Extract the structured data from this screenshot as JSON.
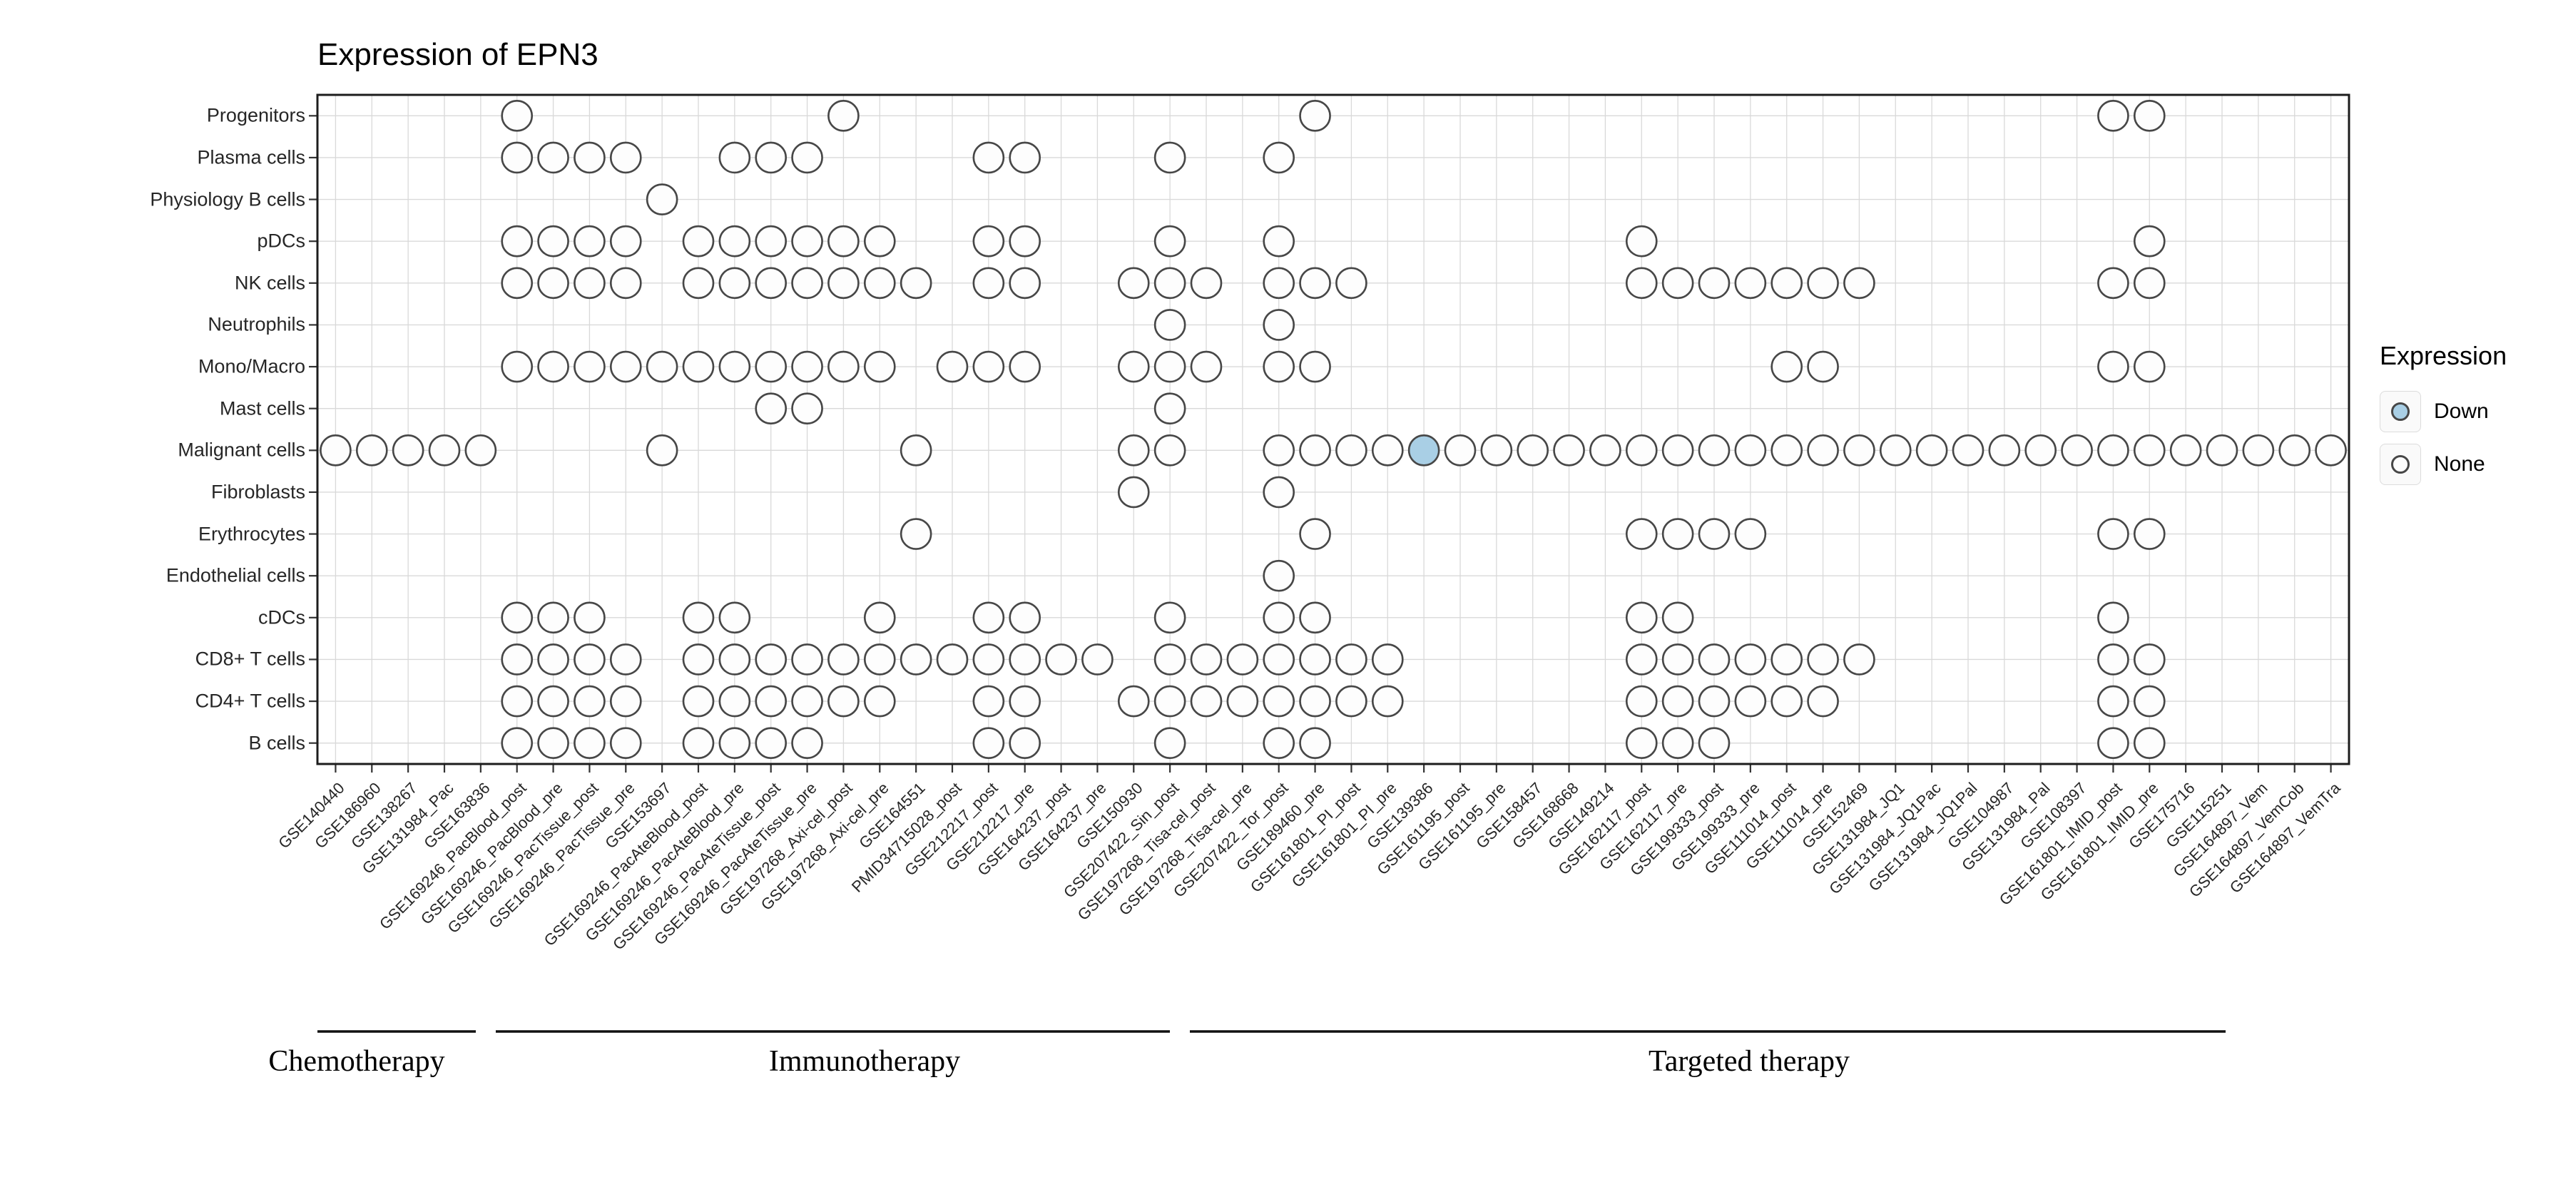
{
  "title": "Expression of EPN3",
  "legend": {
    "title": "Expression",
    "items": [
      {
        "label": "Down",
        "color": "#a9cfe5"
      },
      {
        "label": "None",
        "color": "#fdfdfd"
      }
    ]
  },
  "therapy_groups": [
    {
      "label": "Chemotherapy"
    },
    {
      "label": "Immunotherapy"
    },
    {
      "label": "Targeted therapy"
    }
  ],
  "chart_data": {
    "type": "scatter",
    "subtype": "dot-matrix",
    "title": "Expression of EPN3",
    "xlabel": "",
    "ylabel": "",
    "legend_position": "right",
    "grid": true,
    "colors": {
      "down_fill": "#a9cfe5",
      "none_fill": "#fdfdfd",
      "dot_stroke": "#474747"
    },
    "rows": [
      "Progenitors",
      "Plasma cells",
      "Physiology B cells",
      "pDCs",
      "NK cells",
      "Neutrophils",
      "Mono/Macro",
      "Mast cells",
      "Malignant cells",
      "Fibroblasts",
      "Erythrocytes",
      "Endothelial cells",
      "cDCs",
      "CD8+ T cells",
      "CD4+ T cells",
      "B cells"
    ],
    "columns": [
      "GSE140440",
      "GSE186960",
      "GSE138267",
      "GSE131984_Pac",
      "GSE163836",
      "GSE169246_PacBlood_post",
      "GSE169246_PacBlood_pre",
      "GSE169246_PacTissue_post",
      "GSE169246_PacTissue_pre",
      "GSE153697",
      "GSE169246_PacAteBlood_post",
      "GSE169246_PacAteBlood_pre",
      "GSE169246_PacAteTissue_post",
      "GSE169246_PacAteTissue_pre",
      "GSE197268_Axi-cel_post",
      "GSE197268_Axi-cel_pre",
      "GSE164551",
      "PMID34715028_post",
      "GSE212217_post",
      "GSE212217_pre",
      "GSE164237_post",
      "GSE164237_pre",
      "GSE150930",
      "GSE207422_Sin_post",
      "GSE197268_Tisa-cel_post",
      "GSE197268_Tisa-cel_pre",
      "GSE207422_Tor_post",
      "GSE189460_pre",
      "GSE161801_PI_post",
      "GSE161801_PI_pre",
      "GSE139386",
      "GSE161195_post",
      "GSE161195_pre",
      "GSE158457",
      "GSE168668",
      "GSE149214",
      "GSE162117_post",
      "GSE162117_pre",
      "GSE199333_post",
      "GSE199333_pre",
      "GSE111014_post",
      "GSE111014_pre",
      "GSE152469",
      "GSE131984_JQ1",
      "GSE131984_JQ1Pac",
      "GSE131984_JQ1Pal",
      "GSE104987",
      "GSE131984_Pal",
      "GSE108397",
      "GSE161801_IMID_post",
      "GSE161801_IMID_pre",
      "GSE175716",
      "GSE115251",
      "GSE164897_Vem",
      "GSE164897_VemCob",
      "GSE164897_VemTra"
    ],
    "column_groups": [
      {
        "label": "Chemotherapy",
        "col_start": 1,
        "col_end": 5
      },
      {
        "label": "Immunotherapy",
        "col_start": 6,
        "col_end": 24
      },
      {
        "label": "Targeted therapy",
        "col_start": 25,
        "col_end": 56
      }
    ],
    "dots_none": [
      {
        "row": "Progenitors",
        "cols": [
          6,
          15,
          28,
          50,
          51
        ]
      },
      {
        "row": "Plasma cells",
        "cols": [
          6,
          7,
          8,
          9,
          12,
          13,
          14,
          19,
          20,
          24,
          27
        ]
      },
      {
        "row": "Physiology B cells",
        "cols": [
          10
        ]
      },
      {
        "row": "pDCs",
        "cols": [
          6,
          7,
          8,
          9,
          11,
          12,
          13,
          14,
          15,
          16,
          19,
          20,
          24,
          27,
          37,
          51
        ]
      },
      {
        "row": "NK cells",
        "cols": [
          6,
          7,
          8,
          9,
          11,
          12,
          13,
          14,
          15,
          16,
          17,
          19,
          20,
          23,
          24,
          25,
          27,
          28,
          29,
          37,
          38,
          39,
          40,
          41,
          42,
          43,
          50,
          51
        ]
      },
      {
        "row": "Neutrophils",
        "cols": [
          24,
          27
        ]
      },
      {
        "row": "Mono/Macro",
        "cols": [
          6,
          7,
          8,
          9,
          10,
          11,
          12,
          13,
          14,
          15,
          16,
          18,
          19,
          20,
          23,
          24,
          25,
          27,
          28,
          41,
          42,
          50,
          51
        ]
      },
      {
        "row": "Mast cells",
        "cols": [
          13,
          14,
          24
        ]
      },
      {
        "row": "Malignant cells",
        "cols": [
          1,
          2,
          3,
          4,
          5,
          10,
          17,
          23,
          24,
          27,
          28,
          29,
          30,
          32,
          33,
          34,
          35,
          36,
          37,
          38,
          39,
          40,
          41,
          42,
          43,
          44,
          45,
          46,
          47,
          48,
          49,
          50,
          51,
          52,
          53,
          54,
          55,
          56
        ]
      },
      {
        "row": "Fibroblasts",
        "cols": [
          23,
          27
        ]
      },
      {
        "row": "Erythrocytes",
        "cols": [
          17,
          28,
          37,
          38,
          39,
          40,
          50,
          51
        ]
      },
      {
        "row": "Endothelial cells",
        "cols": [
          27
        ]
      },
      {
        "row": "cDCs",
        "cols": [
          6,
          7,
          8,
          11,
          12,
          16,
          19,
          20,
          24,
          27,
          28,
          37,
          38,
          50
        ]
      },
      {
        "row": "CD8+ T cells",
        "cols": [
          6,
          7,
          8,
          9,
          11,
          12,
          13,
          14,
          15,
          16,
          17,
          18,
          19,
          20,
          21,
          22,
          24,
          25,
          26,
          27,
          28,
          29,
          30,
          37,
          38,
          39,
          40,
          41,
          42,
          43,
          50,
          51
        ]
      },
      {
        "row": "CD4+ T cells",
        "cols": [
          6,
          7,
          8,
          9,
          11,
          12,
          13,
          14,
          15,
          16,
          19,
          20,
          23,
          24,
          25,
          26,
          27,
          28,
          29,
          30,
          37,
          38,
          39,
          40,
          41,
          42,
          50,
          51
        ]
      },
      {
        "row": "B cells",
        "cols": [
          6,
          7,
          8,
          9,
          11,
          12,
          13,
          14,
          19,
          20,
          24,
          27,
          28,
          37,
          38,
          39,
          50,
          51
        ]
      }
    ],
    "dots_down": [
      {
        "row": "Malignant cells",
        "col": 31,
        "column": "GSE139386"
      }
    ]
  }
}
